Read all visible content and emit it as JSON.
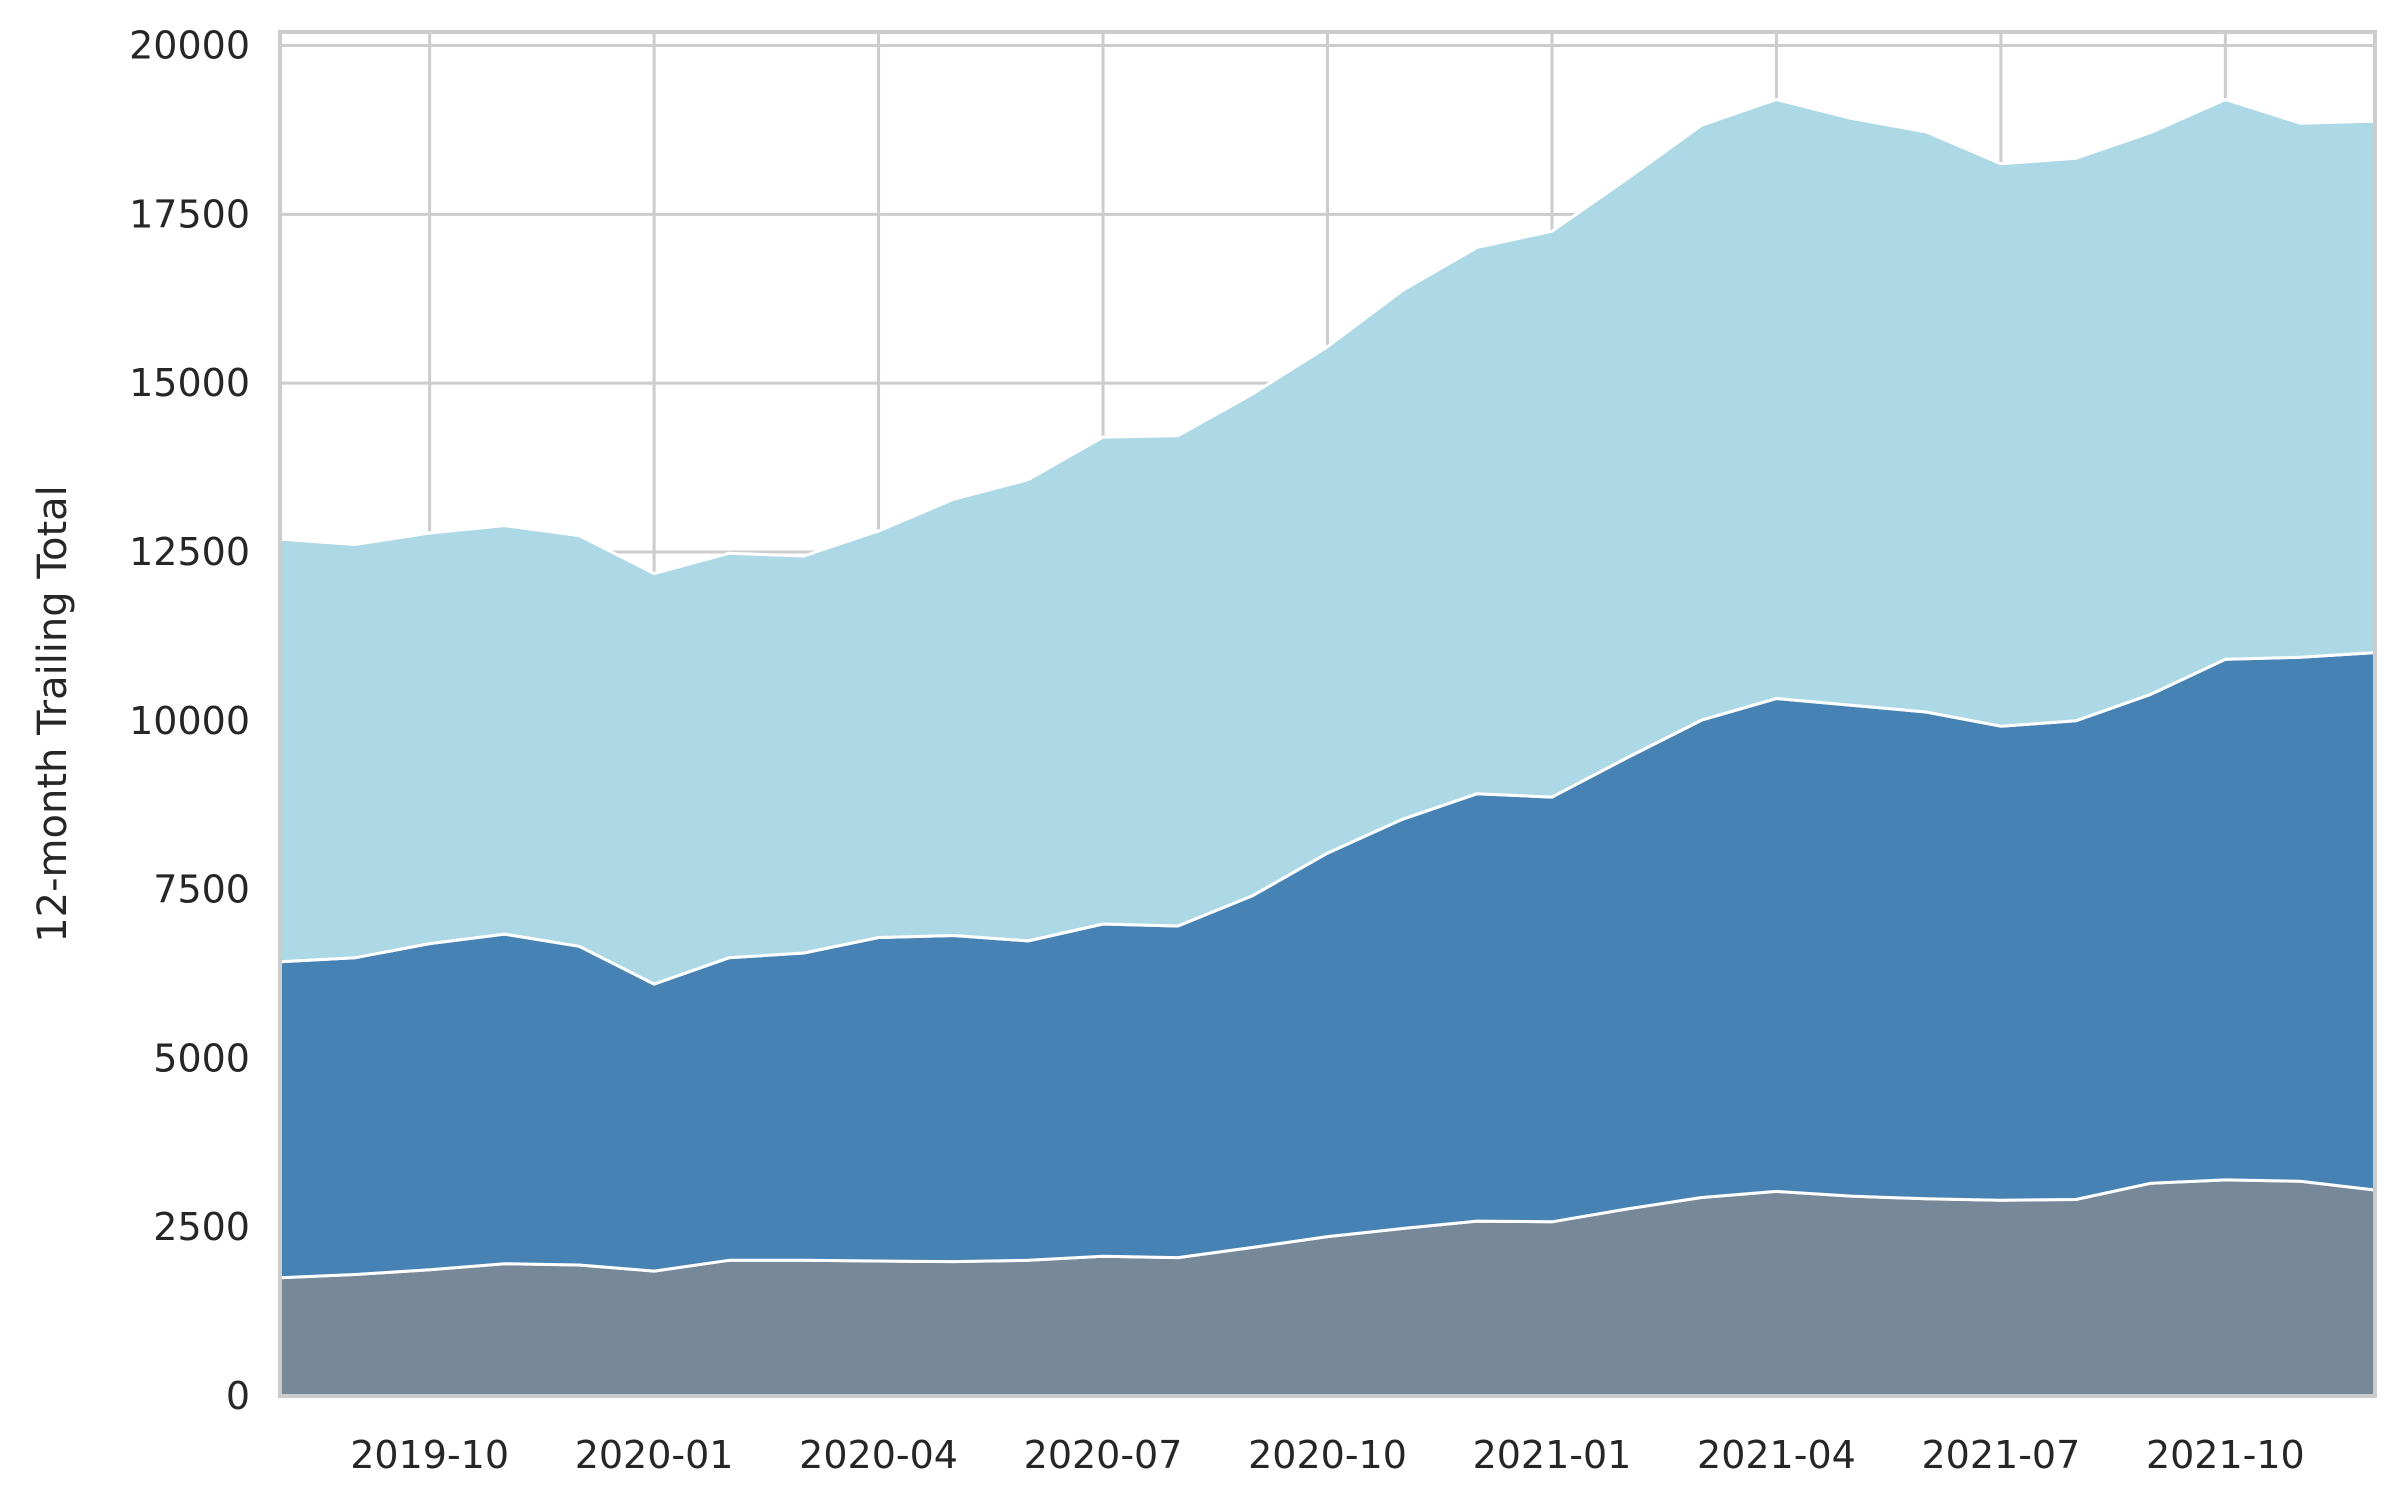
{
  "chart_data": {
    "type": "area",
    "stacked": true,
    "title": "",
    "xlabel": "",
    "ylabel": "12-month Trailing Total",
    "ylim": [
      0,
      20200
    ],
    "xlim": [
      "2019-08",
      "2021-12"
    ],
    "grid": true,
    "legend": "none",
    "x": [
      "2019-08",
      "2019-09",
      "2019-10",
      "2019-11",
      "2019-12",
      "2020-01",
      "2020-02",
      "2020-03",
      "2020-04",
      "2020-05",
      "2020-06",
      "2020-07",
      "2020-08",
      "2020-09",
      "2020-10",
      "2020-11",
      "2020-12",
      "2021-01",
      "2021-02",
      "2021-03",
      "2021-04",
      "2021-05",
      "2021-06",
      "2021-07",
      "2021-08",
      "2021-09",
      "2021-10",
      "2021-11",
      "2021-12"
    ],
    "x_ticks": [
      "2019-10",
      "2020-01",
      "2020-04",
      "2020-07",
      "2020-10",
      "2021-01",
      "2021-04",
      "2021-07",
      "2021-10"
    ],
    "y_ticks": [
      0,
      2500,
      5000,
      7500,
      10000,
      12500,
      15000,
      17500,
      20000
    ],
    "series": [
      {
        "color": "#778899",
        "values": [
          1750,
          1800,
          1870,
          1960,
          1940,
          1850,
          2010,
          2010,
          2000,
          1990,
          2010,
          2070,
          2050,
          2200,
          2360,
          2480,
          2590,
          2580,
          2770,
          2940,
          3030,
          2960,
          2920,
          2900,
          2910,
          3150,
          3200,
          3180,
          3050
        ]
      },
      {
        "color": "#4682b4",
        "values": [
          4680,
          4690,
          4830,
          4880,
          4720,
          4250,
          4480,
          4550,
          4790,
          4830,
          4730,
          4920,
          4910,
          5210,
          5680,
          6060,
          6330,
          6290,
          6680,
          7070,
          7300,
          7270,
          7210,
          7020,
          7090,
          7240,
          7710,
          7760,
          7960
        ]
      },
      {
        "color": "#add8e6",
        "values": [
          6260,
          6120,
          6080,
          6050,
          6080,
          6080,
          5990,
          5880,
          6020,
          6460,
          6830,
          7210,
          7260,
          7430,
          7500,
          7830,
          8090,
          8380,
          8570,
          8810,
          8870,
          8690,
          8590,
          8330,
          8330,
          8320,
          8290,
          7910,
          7870
        ]
      }
    ]
  }
}
